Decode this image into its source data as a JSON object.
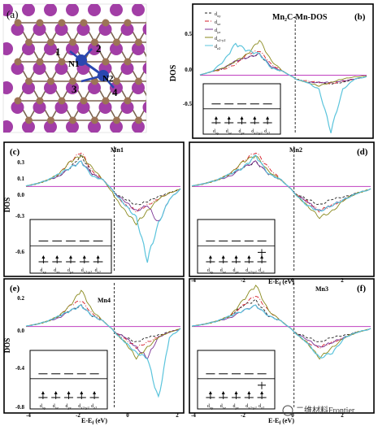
{
  "colors": {
    "dxy": "#222222",
    "dxz": "#d61f2b",
    "dyz": "#7b3294",
    "dx2y2": "#8a8a1e",
    "dz2": "#5bc4dc",
    "zero": "#c040c0",
    "mn_atom": "#a23ea6",
    "c_atom": "#9c7456",
    "n_atom": "#2a47b0"
  },
  "panel_a": {
    "label": "(a)",
    "site_labels": [
      "1",
      "2",
      "3",
      "4",
      "N1",
      "N2"
    ]
  },
  "panel_b": {
    "label": "(b)",
    "title": "Mn₂C-Mn-DOS",
    "ylabel": "DOS",
    "yticks": [
      "0.5",
      "0.0",
      "-0.5"
    ],
    "legend": [
      {
        "sym": "xy",
        "text": "d",
        "sub": "xy"
      },
      {
        "sym": "xz",
        "text": "d",
        "sub": "xz"
      },
      {
        "sym": "yz",
        "text": "d",
        "sub": "yz"
      },
      {
        "sym": "x2y2",
        "text": "d",
        "sub": "x2-y2"
      },
      {
        "sym": "z2",
        "text": "d",
        "sub": "z2"
      }
    ],
    "orbitals": [
      "dxy",
      "dxz",
      "dyz",
      "dx2-y2",
      "dz2"
    ]
  },
  "panel_c": {
    "label": "(c)",
    "atom": "Mn1",
    "ylabel": "DOS",
    "yticks": [
      "0.3",
      "0.1",
      "0.0",
      "-0.3",
      "-0.6"
    ]
  },
  "panel_d": {
    "label": "(d)",
    "atom": "Mn2"
  },
  "panel_e": {
    "label": "(e)",
    "atom": "Mn4",
    "ylabel": "DOS",
    "yticks": [
      "0.2",
      "0.0",
      "-0.4",
      "-0.8"
    ]
  },
  "panel_f": {
    "label": "(f)",
    "atom": "Mn3"
  },
  "xaxis": {
    "label": "E-E",
    "label_sub": "f",
    "label_unit": " (eV)",
    "ticks_left": [
      "-4",
      "-2",
      "0",
      "2"
    ],
    "ticks_right": [
      "-4",
      "-2",
      "0",
      "2"
    ]
  },
  "inset_orbitals": [
    {
      "d": "d",
      "sub": "xy"
    },
    {
      "d": "d",
      "sub": "xz"
    },
    {
      "d": "d",
      "sub": "yz"
    },
    {
      "d": "d",
      "sub": "x2-y2"
    },
    {
      "d": "d",
      "sub": "z2"
    }
  ],
  "watermark": "二维材料Frontier",
  "chart_data": [
    {
      "type": "line",
      "title": "Mn₂C-Mn-DOS",
      "xlabel": "E-Ef (eV)",
      "ylabel": "DOS",
      "xlim": [
        -4,
        3
      ],
      "ylim": [
        -0.9,
        0.9
      ],
      "grid": false,
      "legend_position": "top-left",
      "x": [
        -4,
        -3.5,
        -3,
        -2.5,
        -2,
        -1.5,
        -1,
        -0.5,
        0,
        0.5,
        1,
        1.5,
        2,
        2.5,
        3
      ],
      "series": [
        {
          "name": "dxy",
          "values": [
            0.0,
            0.05,
            0.1,
            0.2,
            0.25,
            0.3,
            0.1,
            0.05,
            -0.05,
            -0.1,
            -0.1,
            -0.12,
            -0.1,
            -0.05,
            -0.02
          ]
        },
        {
          "name": "dxz",
          "values": [
            0.0,
            0.05,
            0.08,
            0.15,
            0.3,
            0.35,
            0.15,
            0.05,
            -0.05,
            -0.08,
            -0.1,
            -0.12,
            -0.08,
            -0.05,
            -0.02
          ]
        },
        {
          "name": "dyz",
          "values": [
            0.0,
            0.05,
            0.1,
            0.2,
            0.25,
            0.3,
            0.12,
            0.05,
            -0.05,
            -0.1,
            -0.1,
            -0.1,
            -0.08,
            -0.05,
            -0.02
          ]
        },
        {
          "name": "dx2-y2",
          "values": [
            0.0,
            0.05,
            0.1,
            0.2,
            0.3,
            0.5,
            0.2,
            0.05,
            -0.05,
            -0.1,
            -0.15,
            -0.1,
            -0.05,
            -0.02,
            -0.01
          ]
        },
        {
          "name": "dz2",
          "values": [
            0.0,
            0.05,
            0.2,
            0.45,
            0.35,
            0.3,
            0.1,
            0.05,
            -0.05,
            -0.1,
            -0.2,
            -0.8,
            -0.2,
            -0.05,
            -0.02
          ]
        }
      ]
    },
    {
      "type": "line",
      "title": "Mn1",
      "xlabel": "",
      "ylabel": "DOS",
      "xlim": [
        -4,
        3
      ],
      "ylim": [
        -0.75,
        0.35
      ],
      "grid": false,
      "x": [
        -4,
        -3.5,
        -3,
        -2.5,
        -2,
        -1.5,
        -1,
        -0.5,
        0,
        0.5,
        1,
        1.5,
        2,
        2.5,
        3
      ],
      "series": [
        {
          "name": "dxy",
          "values": [
            0.0,
            0.02,
            0.05,
            0.08,
            0.15,
            0.25,
            0.1,
            0.05,
            -0.05,
            -0.1,
            -0.15,
            -0.12,
            -0.08,
            -0.05,
            -0.02
          ]
        },
        {
          "name": "dxz",
          "values": [
            0.0,
            0.02,
            0.05,
            0.1,
            0.2,
            0.28,
            0.12,
            0.05,
            -0.05,
            -0.15,
            -0.2,
            -0.15,
            -0.1,
            -0.05,
            -0.02
          ]
        },
        {
          "name": "dyz",
          "values": [
            0.0,
            0.02,
            0.05,
            0.08,
            0.15,
            0.2,
            0.1,
            0.05,
            -0.05,
            -0.12,
            -0.2,
            -0.15,
            -0.3,
            -0.1,
            -0.02
          ]
        },
        {
          "name": "dx2-y2",
          "values": [
            0.0,
            0.02,
            0.05,
            0.1,
            0.2,
            0.25,
            0.15,
            0.05,
            -0.08,
            -0.2,
            -0.3,
            -0.2,
            -0.1,
            -0.05,
            -0.02
          ]
        },
        {
          "name": "dz2",
          "values": [
            0.0,
            0.02,
            0.05,
            0.1,
            0.15,
            0.2,
            0.08,
            0.05,
            -0.05,
            -0.15,
            -0.25,
            -0.6,
            -0.3,
            -0.1,
            -0.02
          ]
        }
      ]
    },
    {
      "type": "line",
      "title": "Mn2",
      "xlabel": "E-Ef (eV)",
      "ylabel": "",
      "xlim": [
        -4,
        3
      ],
      "ylim": [
        -0.75,
        0.35
      ],
      "grid": false,
      "x": [
        -4,
        -3.5,
        -3,
        -2.5,
        -2,
        -1.5,
        -1,
        -0.5,
        0,
        0.5,
        1,
        1.5,
        2,
        2.5,
        3
      ],
      "series": [
        {
          "name": "dxy",
          "values": [
            0.0,
            0.02,
            0.05,
            0.1,
            0.15,
            0.2,
            0.1,
            0.05,
            -0.05,
            -0.1,
            -0.15,
            -0.1,
            -0.08,
            -0.05,
            -0.02
          ]
        },
        {
          "name": "dxz",
          "values": [
            0.0,
            0.02,
            0.05,
            0.1,
            0.2,
            0.28,
            0.15,
            0.05,
            -0.05,
            -0.12,
            -0.2,
            -0.15,
            -0.1,
            -0.05,
            -0.02
          ]
        },
        {
          "name": "dyz",
          "values": [
            0.0,
            0.02,
            0.05,
            0.08,
            0.15,
            0.2,
            0.1,
            0.05,
            -0.05,
            -0.12,
            -0.2,
            -0.15,
            -0.1,
            -0.05,
            -0.02
          ]
        },
        {
          "name": "dx2-y2",
          "values": [
            0.0,
            0.02,
            0.05,
            0.1,
            0.2,
            0.25,
            0.12,
            0.05,
            -0.05,
            -0.15,
            -0.25,
            -0.2,
            -0.1,
            -0.05,
            -0.02
          ]
        },
        {
          "name": "dz2",
          "values": [
            0.0,
            0.02,
            0.05,
            0.1,
            0.15,
            0.25,
            0.1,
            0.05,
            -0.05,
            -0.15,
            -0.2,
            -0.15,
            -0.1,
            -0.05,
            -0.02
          ]
        }
      ]
    },
    {
      "type": "line",
      "title": "Mn4",
      "xlabel": "E-Ef (eV)",
      "ylabel": "DOS",
      "xlim": [
        -4,
        3
      ],
      "ylim": [
        -0.85,
        0.45
      ],
      "grid": false,
      "x": [
        -4,
        -3.5,
        -3,
        -2.5,
        -2,
        -1.5,
        -1,
        -0.5,
        0,
        0.5,
        1,
        1.5,
        2,
        2.5,
        3
      ],
      "series": [
        {
          "name": "dxy",
          "values": [
            0.0,
            0.02,
            0.05,
            0.1,
            0.15,
            0.2,
            0.1,
            0.05,
            -0.05,
            -0.1,
            -0.15,
            -0.1,
            -0.08,
            -0.05,
            -0.02
          ]
        },
        {
          "name": "dxz",
          "values": [
            0.0,
            0.02,
            0.05,
            0.1,
            0.2,
            0.25,
            0.12,
            0.05,
            -0.05,
            -0.12,
            -0.2,
            -0.15,
            -0.1,
            -0.05,
            -0.02
          ]
        },
        {
          "name": "dyz",
          "values": [
            0.0,
            0.02,
            0.05,
            0.08,
            0.15,
            0.2,
            0.1,
            0.05,
            -0.05,
            -0.1,
            -0.2,
            -0.3,
            -0.1,
            -0.05,
            -0.02
          ]
        },
        {
          "name": "dx2-y2",
          "values": [
            0.0,
            0.02,
            0.05,
            0.1,
            0.2,
            0.35,
            0.15,
            0.05,
            -0.05,
            -0.15,
            -0.3,
            -0.2,
            -0.1,
            -0.05,
            -0.02
          ]
        },
        {
          "name": "dz2",
          "values": [
            0.0,
            0.02,
            0.05,
            0.1,
            0.15,
            0.2,
            0.1,
            0.05,
            -0.05,
            -0.15,
            -0.25,
            -0.3,
            -0.7,
            -0.1,
            -0.02
          ]
        }
      ]
    },
    {
      "type": "line",
      "title": "Mn3",
      "xlabel": "E-Ef (eV)",
      "ylabel": "",
      "xlim": [
        -4,
        3
      ],
      "ylim": [
        -0.85,
        0.45
      ],
      "grid": false,
      "x": [
        -4,
        -3.5,
        -3,
        -2.5,
        -2,
        -1.5,
        -1,
        -0.5,
        0,
        0.5,
        1,
        1.5,
        2,
        2.5,
        3
      ],
      "series": [
        {
          "name": "dxy",
          "values": [
            0.0,
            0.02,
            0.05,
            0.1,
            0.2,
            0.25,
            0.1,
            0.05,
            -0.05,
            -0.1,
            -0.15,
            -0.1,
            -0.08,
            -0.05,
            -0.02
          ]
        },
        {
          "name": "dxz",
          "values": [
            0.0,
            0.02,
            0.05,
            0.1,
            0.2,
            0.3,
            0.15,
            0.05,
            -0.05,
            -0.15,
            -0.2,
            -0.15,
            -0.1,
            -0.05,
            -0.02
          ]
        },
        {
          "name": "dyz",
          "values": [
            0.0,
            0.02,
            0.05,
            0.08,
            0.15,
            0.2,
            0.1,
            0.05,
            -0.05,
            -0.12,
            -0.2,
            -0.15,
            -0.1,
            -0.05,
            -0.02
          ]
        },
        {
          "name": "dx2-y2",
          "values": [
            0.0,
            0.02,
            0.05,
            0.1,
            0.25,
            0.4,
            0.15,
            0.05,
            -0.05,
            -0.15,
            -0.3,
            -0.2,
            -0.1,
            -0.05,
            -0.02
          ]
        },
        {
          "name": "dz2",
          "values": [
            0.0,
            0.02,
            0.05,
            0.1,
            0.15,
            0.2,
            0.1,
            0.05,
            -0.05,
            -0.15,
            -0.3,
            -0.25,
            -0.1,
            -0.05,
            -0.02
          ]
        }
      ]
    }
  ]
}
